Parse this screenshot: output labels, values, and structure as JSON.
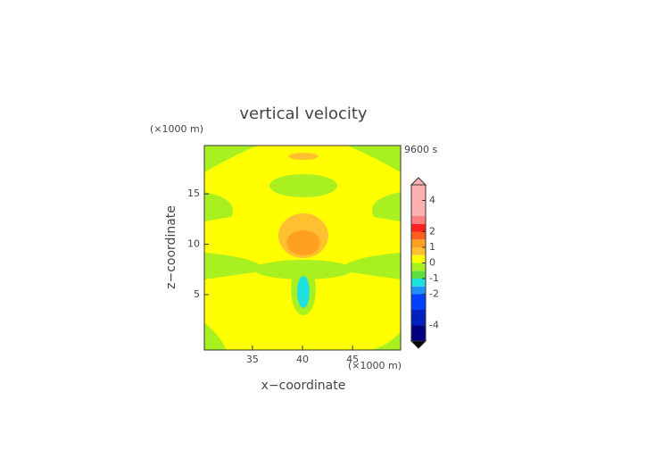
{
  "chart_data": {
    "type": "contour",
    "title": "vertical velocity",
    "x_label": "x−coordinate",
    "y_label": "z−coordinate",
    "x_unit": "(×1000 m)",
    "y_unit": "(×1000 m)",
    "time_label": "9600 s",
    "xlim": [
      30.2,
      49.8
    ],
    "xticks": [
      35,
      40,
      45
    ],
    "ylim": [
      -0.5,
      19.8
    ],
    "yticks": [
      5,
      10,
      15
    ],
    "colorbar": {
      "lim": [
        -5,
        5
      ],
      "bounds": [
        -5,
        -4,
        -3,
        -2,
        -1.5,
        -1,
        -0.5,
        0,
        0.5,
        1,
        1.5,
        2,
        2.5,
        3,
        5
      ],
      "colors": [
        "#000080",
        "#0020c0",
        "#0040ff",
        "#2090ff",
        "#20e0e0",
        "#60e040",
        "#a8f020",
        "#ffff00",
        "#ffc030",
        "#ffa020",
        "#ff6020",
        "#ff2020",
        "#ff8080",
        "#ffb0b0"
      ],
      "over_color": "#ffb0b0",
      "under_color": "#000000",
      "ticks": [
        -4,
        -2,
        -1,
        0,
        1,
        2,
        4
      ]
    }
  }
}
